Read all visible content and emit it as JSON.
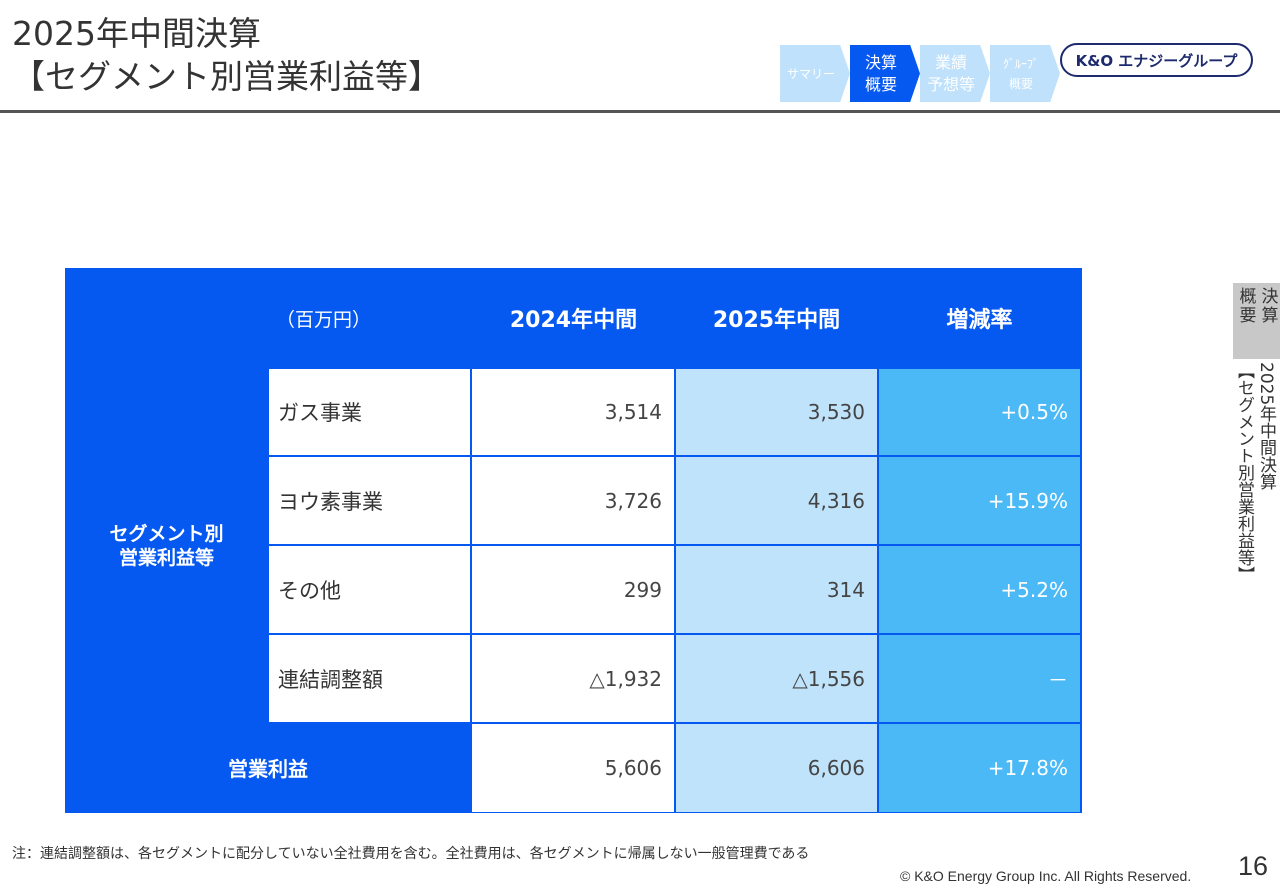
{
  "header": {
    "title_line1": "2025年中間決算",
    "title_line2": "【セグメント別営業利益等】"
  },
  "nav": {
    "steps": [
      {
        "label": "サマリー",
        "active": false
      },
      {
        "label": "決算\n概要",
        "active": true
      },
      {
        "label": "業績\n予想等",
        "active": false
      },
      {
        "label": "ｸﾞﾙｰﾌﾟ\n概要",
        "active": false
      }
    ]
  },
  "logo": {
    "text": "K&O エナジーグループ",
    "color": "#1d2a6e"
  },
  "table": {
    "unit": "（百万円）",
    "columns": [
      "2024年中間",
      "2025年中間",
      "増減率"
    ],
    "segment_label": "セグメント別\n営業利益等",
    "rows": [
      {
        "name": "ガス事業",
        "v2024": "3,514",
        "v2025": "3,530",
        "rate": "+0.5%"
      },
      {
        "name": "ヨウ素事業",
        "v2024": "3,726",
        "v2025": "4,316",
        "rate": "+15.9%"
      },
      {
        "name": "その他",
        "v2024": "299",
        "v2025": "314",
        "rate": "+5.2%"
      },
      {
        "name": "連結調整額",
        "v2024": "△1,932",
        "v2025": "△1,556",
        "rate": "－"
      }
    ],
    "total": {
      "name": "営業利益",
      "v2024": "5,606",
      "v2025": "6,606",
      "rate": "+17.8%"
    },
    "colors": {
      "header": "#0558f0",
      "v2025_bg": "#bfe3fb",
      "rate_bg": "#4bb9f6"
    }
  },
  "side": {
    "tab_col1": "決算",
    "tab_col2": "概要",
    "title_col1": "2025年中間決算",
    "title_col2": "【セグメント別営業利益等】"
  },
  "footer": {
    "note": "注：連結調整額は、各セグメントに配分していない全社費用を含む。全社費用は、各セグメントに帰属しない一般管理費である",
    "copyright": "© K&O Energy Group Inc. All Rights Reserved.",
    "page": "16"
  }
}
